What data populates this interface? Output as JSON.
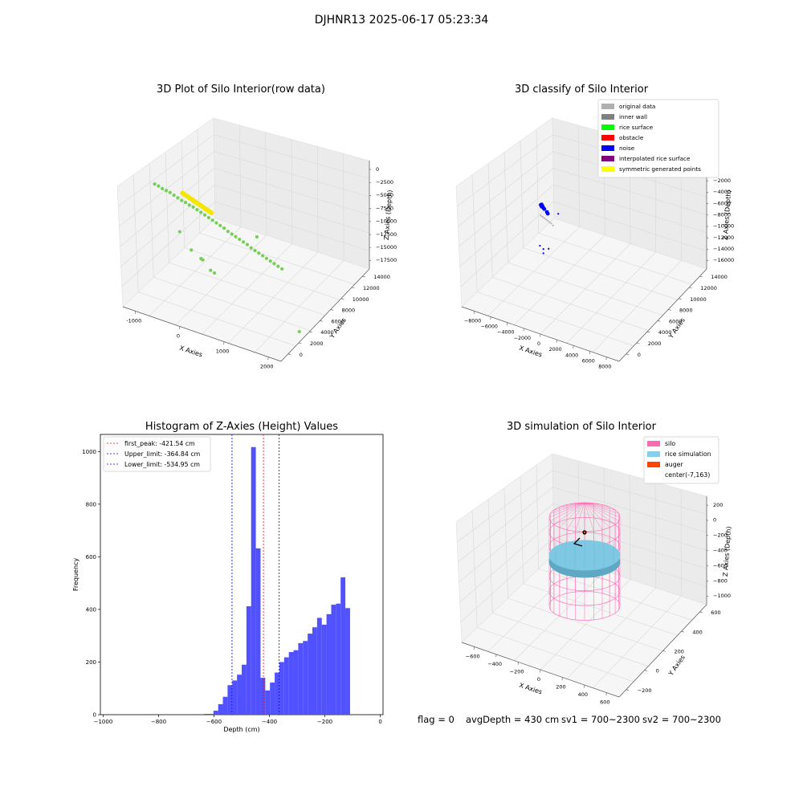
{
  "figure": {
    "suptitle": "DJHNR13 2025-06-17 05:23:34",
    "status_line": {
      "flag": "flag = 0",
      "avg_depth": "avgDepth = 430 cm",
      "sv1": "sv1 = 700~2300",
      "sv2": "sv2 = 700~2300"
    }
  },
  "colors": {
    "raw_points": "#66cc44",
    "raw_dense": "#f5e600",
    "hist_bar": "#4b4bff",
    "peak_line": "#ff0000",
    "limit_line": "#0000ff",
    "silo": "#ff66b3",
    "rice": "#7ec8e3",
    "auger": "#ff4500",
    "pane": "#f2f2f2",
    "grid": "#d8d8d8"
  },
  "chart_data": [
    {
      "type": "scatter",
      "title": "3D Plot of Silo Interior(row data)",
      "xlabel": "X Axies",
      "ylabel": "Y Axies",
      "zlabel": "Z Axies (Depth)",
      "x_ticks": [
        "-1000",
        "0",
        "1000",
        "2000"
      ],
      "y_ticks": [
        "0",
        "2000",
        "4000",
        "6000",
        "8000",
        "10000",
        "12000",
        "14000"
      ],
      "z_ticks": [
        "0",
        "−2500",
        "−5000",
        "−7500",
        "−10000",
        "−12500",
        "−15000",
        "−17500"
      ],
      "series": [
        {
          "points": [
            [
              -1150,
              3500,
              -2000
            ],
            [
              -1050,
              3500,
              -2100
            ],
            [
              -950,
              3500,
              -2300
            ],
            [
              -850,
              3500,
              -2400
            ],
            [
              -750,
              3500,
              -2500
            ],
            [
              -650,
              3500,
              -2700
            ],
            [
              -550,
              3500,
              -2900
            ],
            [
              -450,
              3500,
              -3100
            ],
            [
              -350,
              3500,
              -3200
            ],
            [
              -250,
              3500,
              -3400
            ],
            [
              -150,
              3500,
              -3500
            ],
            [
              -50,
              3500,
              -3700
            ],
            [
              50,
              3500,
              -3900
            ],
            [
              150,
              3500,
              -4100
            ],
            [
              250,
              3500,
              -4300
            ],
            [
              350,
              3500,
              -4500
            ],
            [
              450,
              3500,
              -4700
            ],
            [
              550,
              3500,
              -4900
            ],
            [
              650,
              3500,
              -5100
            ],
            [
              750,
              3500,
              -5400
            ],
            [
              850,
              3500,
              -5600
            ],
            [
              950,
              3500,
              -5800
            ],
            [
              1050,
              3500,
              -6000
            ],
            [
              1150,
              3500,
              -6200
            ],
            [
              1250,
              3500,
              -6400
            ],
            [
              1350,
              3500,
              -6700
            ],
            [
              1450,
              3500,
              -6900
            ],
            [
              1550,
              3500,
              -7100
            ],
            [
              1650,
              3500,
              -7300
            ],
            [
              1750,
              3500,
              -7500
            ],
            [
              1850,
              3500,
              -7700
            ],
            [
              1950,
              3500,
              -7900
            ],
            [
              2050,
              3500,
              -8100
            ],
            [
              2150,
              3500,
              -8300
            ],
            [
              -500,
              3500,
              -8000
            ],
            [
              -200,
              3500,
              -10200
            ],
            [
              50,
              3500,
              -11000
            ],
            [
              100,
              3500,
              -11100
            ],
            [
              300,
              3500,
              -12300
            ],
            [
              400,
              3500,
              -12500
            ],
            [
              1500,
              3500,
              -4700
            ],
            [
              2600,
              3500,
              -17000
            ]
          ]
        },
        {
          "points": [
            [
              -500,
              4000,
              -2500
            ],
            [
              -450,
              4000,
              -2600
            ],
            [
              -400,
              4000,
              -2700
            ],
            [
              -350,
              4000,
              -2800
            ],
            [
              -300,
              4000,
              -2900
            ],
            [
              -250,
              4000,
              -3000
            ],
            [
              -200,
              4000,
              -3100
            ],
            [
              -150,
              4000,
              -3200
            ],
            [
              -100,
              4000,
              -3300
            ],
            [
              -50,
              4000,
              -3400
            ],
            [
              0,
              4000,
              -3500
            ],
            [
              50,
              4000,
              -3600
            ],
            [
              100,
              4000,
              -3700
            ],
            [
              150,
              4000,
              -3800
            ],
            [
              200,
              4000,
              -3900
            ],
            [
              250,
              4000,
              -4000
            ]
          ]
        }
      ]
    },
    {
      "type": "scatter",
      "title": "3D classify of Silo Interior",
      "xlabel": "X Axies",
      "ylabel": "Y Axies",
      "zlabel": "Z Axies (Depth)",
      "x_ticks": [
        "−8000",
        "−6000",
        "−4000",
        "−2000",
        "0",
        "2000",
        "4000",
        "6000",
        "8000"
      ],
      "y_ticks": [
        "0",
        "2000",
        "4000",
        "6000",
        "8000",
        "10000",
        "12000",
        "14000"
      ],
      "z_ticks": [
        "0",
        "−2000",
        "−4000",
        "−6000",
        "−8000",
        "−10000",
        "−12000",
        "−14000",
        "−16000"
      ],
      "legend": [
        "original data",
        "inner wall",
        "rice surface",
        "obstacle",
        "noise",
        "interpolated rice surface",
        "symmetric generated points"
      ],
      "legend_colors": [
        "#b0b0b0",
        "#808080",
        "#00ff00",
        "#ff0000",
        "#0000ff",
        "#800080",
        "#ffff00"
      ],
      "series": [
        {
          "label": "original data",
          "points": [
            [
              -2600,
              4000,
              -4500
            ],
            [
              -2400,
              4000,
              -4600
            ],
            [
              -2200,
              4000,
              -4700
            ],
            [
              -2000,
              4000,
              -4800
            ],
            [
              -1800,
              4000,
              -4900
            ],
            [
              -1600,
              4000,
              -5000
            ],
            [
              -1400,
              4000,
              -5100
            ],
            [
              -1200,
              4000,
              -5300
            ]
          ]
        },
        {
          "label": "noise",
          "points": [
            [
              -2600,
              4000,
              -3000
            ],
            [
              -2500,
              4000,
              -2900
            ],
            [
              -2400,
              4000,
              -3100
            ],
            [
              -2500,
              4000,
              -3200
            ],
            [
              -2300,
              4000,
              -3300
            ],
            [
              -2200,
              4000,
              -3400
            ],
            [
              -1900,
              4000,
              -3700
            ],
            [
              -1800,
              4000,
              -3900
            ],
            [
              -600,
              4000,
              -3400
            ],
            [
              -2700,
              4000,
              -8800
            ],
            [
              -2300,
              4000,
              -9100
            ],
            [
              -1700,
              4000,
              -8800
            ],
            [
              -2300,
              4000,
              -9700
            ]
          ]
        }
      ]
    },
    {
      "type": "bar",
      "title": "Histogram of Z-Axies (Height) Values",
      "xlabel": "Depth (cm)",
      "ylabel": "Frequency",
      "xlim": [
        -1010,
        10
      ],
      "ylim": [
        0,
        1065
      ],
      "x_ticks": [
        "−1000",
        "−800",
        "−600",
        "−400",
        "−200",
        "0"
      ],
      "y_ticks": [
        "0",
        "200",
        "400",
        "600",
        "800",
        "1000"
      ],
      "bin_width": 17,
      "bins": [
        -636,
        -619,
        -602,
        -585,
        -568,
        -551,
        -534,
        -517,
        -500,
        -483,
        -466,
        -449,
        -432,
        -415,
        -398,
        -381,
        -364,
        -347,
        -330,
        -313,
        -296,
        -279,
        -262,
        -245,
        -228,
        -211,
        -194,
        -177,
        -160,
        -143,
        -126,
        -109,
        -92,
        -75,
        -58,
        -41
      ],
      "values": [
        3,
        3,
        15,
        40,
        68,
        112,
        130,
        152,
        190,
        412,
        1017,
        632,
        140,
        92,
        122,
        160,
        200,
        218,
        238,
        245,
        272,
        280,
        308,
        332,
        368,
        342,
        382,
        418,
        422,
        522,
        405,
        0,
        0,
        0,
        0,
        0
      ],
      "lines": [
        {
          "label": "first_peak: -421.54 cm",
          "x": -421.54,
          "color": "#ff0000"
        },
        {
          "label": "Upper_limit: -364.84 cm",
          "x": -364.84,
          "color": "#0000ff"
        },
        {
          "label": "Lower_limit: -534.95 cm",
          "x": -534.95,
          "color": "#0000ff"
        }
      ]
    },
    {
      "type": "area",
      "title": "3D simulation of Silo Interior",
      "xlabel": "X Axies",
      "ylabel": "Y Axies",
      "zlabel": "Z Axies (Depth)",
      "x_ticks": [
        "−600",
        "−400",
        "−200",
        "0",
        "200",
        "400",
        "600"
      ],
      "y_ticks": [
        "−200",
        "0",
        "200",
        "400",
        "600"
      ],
      "z_ticks": [
        "200",
        "0",
        "−200",
        "−400",
        "−600",
        "−800",
        "−1000"
      ],
      "legend": [
        "silo",
        "rice simulation",
        "auger",
        "center(-7,163)"
      ],
      "legend_colors": [
        "#ff69b4",
        "#87ceeb",
        "#ff4500",
        ""
      ],
      "silo_radius": 300,
      "silo_top": 0,
      "silo_bottom": -1000,
      "rice_surface_depth": -430,
      "center": [
        -7,
        163
      ]
    }
  ]
}
